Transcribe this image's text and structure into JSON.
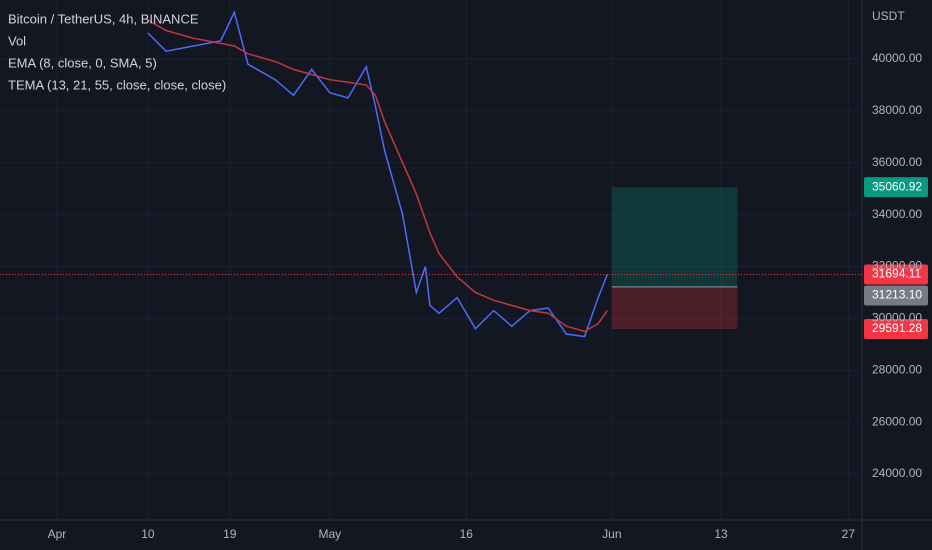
{
  "chart_data": {
    "type": "line",
    "title": "Bitcoin / TetherUS, 4h, BINANCE",
    "indicators": [
      "Vol",
      "EMA (8, close, 0, SMA, 5)",
      "TEMA (13, 21, 55, close, close, close)"
    ],
    "unit": "USDT",
    "x": [
      10,
      12,
      15,
      18,
      19.5,
      21,
      24,
      26,
      28,
      30,
      32,
      34,
      35,
      36,
      38,
      39.5,
      40.5,
      41,
      42,
      44,
      46,
      48,
      50,
      52,
      54,
      56,
      58,
      59.5,
      60.5
    ],
    "series": [
      {
        "color": "#4a6cf7",
        "values": [
          41000,
          40300,
          40500,
          40700,
          41800,
          39800,
          39200,
          38600,
          39600,
          38700,
          38500,
          39700,
          38200,
          36500,
          34000,
          31000,
          32000,
          30500,
          30200,
          30800,
          29600,
          30300,
          29700,
          30300,
          30400,
          29400,
          29300,
          30800,
          31694.11
        ]
      },
      {
        "color": "#c2383c",
        "values": [
          41500,
          41100,
          40800,
          40600,
          40500,
          40200,
          39900,
          39600,
          39400,
          39200,
          39100,
          39000,
          38600,
          37600,
          36000,
          34800,
          33800,
          33300,
          32500,
          31600,
          31000,
          30700,
          30500,
          30300,
          30200,
          29700,
          29500,
          29800,
          30300
        ]
      }
    ],
    "xlim": [
      -6.26,
      88.5
    ],
    "xticks": [
      {
        "value": 0,
        "label": "Apr"
      },
      10,
      19,
      {
        "value": 30,
        "label": "May"
      },
      {
        "value": 45,
        "label": "16"
      },
      {
        "value": 61,
        "label": "Jun"
      },
      {
        "value": 73,
        "label": "13"
      },
      {
        "value": 87,
        "label": "27"
      }
    ],
    "ylim": [
      22228,
      42274
    ],
    "yticks": [
      {
        "value": 24000,
        "label": "24000.00"
      },
      {
        "value": 26000,
        "label": "26000.00"
      },
      {
        "value": 28000,
        "label": "28000.00"
      },
      {
        "value": 30000,
        "label": "30000.00"
      },
      {
        "value": 32000,
        "label": "32000.00"
      },
      {
        "value": 34000,
        "label": "34000.00"
      },
      {
        "value": 36000,
        "label": "36000.00"
      },
      {
        "value": 38000,
        "label": "38000.00"
      },
      {
        "value": 40000,
        "label": "40000.00"
      }
    ],
    "last_price": {
      "value": 31694.11,
      "label": "31694.11"
    },
    "position": {
      "start": 61,
      "end": 74.8,
      "target": {
        "value": 35060.92,
        "label": "35060.92"
      },
      "entry": {
        "value": 31213.1,
        "label": "31213.10"
      },
      "stop": {
        "value": 29591.28,
        "label": "29591.28"
      }
    },
    "grid": true
  }
}
